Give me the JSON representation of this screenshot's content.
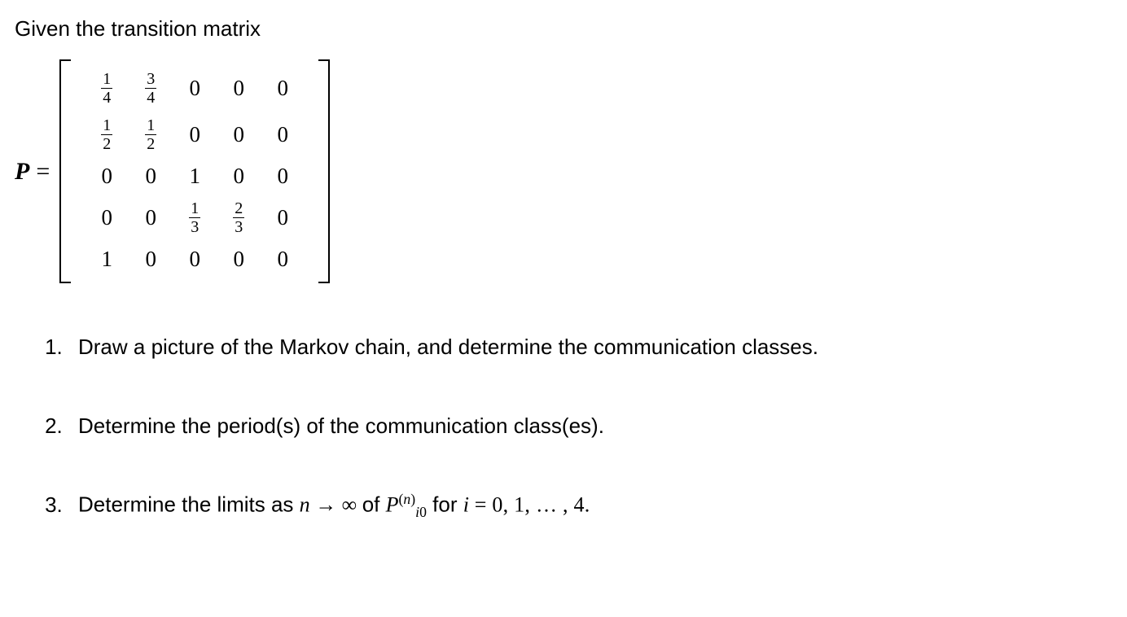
{
  "intro": "Given the transition matrix",
  "matrix": {
    "lhs": "P",
    "eq": "=",
    "rows": [
      [
        {
          "n": "1",
          "d": "4"
        },
        {
          "n": "3",
          "d": "4"
        },
        "0",
        "0",
        "0"
      ],
      [
        {
          "n": "1",
          "d": "2"
        },
        {
          "n": "1",
          "d": "2"
        },
        "0",
        "0",
        "0"
      ],
      [
        "0",
        "0",
        "1",
        "0",
        "0"
      ],
      [
        "0",
        "0",
        {
          "n": "1",
          "d": "3"
        },
        {
          "n": "2",
          "d": "3"
        },
        "0"
      ],
      [
        "1",
        "0",
        "0",
        "0",
        "0"
      ]
    ]
  },
  "q1": "Draw a picture of the Markov chain, and determine the communication classes.",
  "q2": "Determine the period(s) of the communication class(es).",
  "q3_a": "Determine the limits as ",
  "q3_n": "n",
  "q3_arrow": " → ∞ ",
  "q3_of": "of ",
  "q3_P": "P",
  "q3_exp_paren_l": "(",
  "q3_exp_n": "n",
  "q3_exp_paren_r": ")",
  "q3_sub_i": "i",
  "q3_sub_0": "0",
  "q3_for": " for ",
  "q3_i": "i",
  "q3_eq": " = ",
  "q3_range": "0, 1, … , 4."
}
